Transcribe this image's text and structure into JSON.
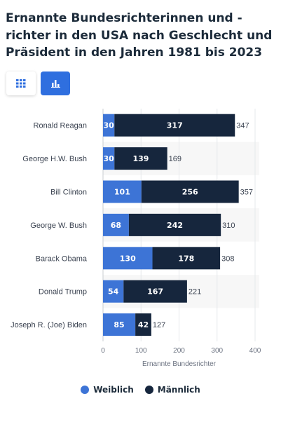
{
  "title": "Ernannte Bundesrichterinnen und -richter in den USA nach Geschlecht und Präsident in den Jahren 1981 bis 2023",
  "icons": {
    "table": "grid-icon",
    "chart": "bar-chart-icon"
  },
  "colors": {
    "female": "#3d74d6",
    "male": "#16263d",
    "accent": "#2f6fdf"
  },
  "chart_data": {
    "type": "bar",
    "orientation": "horizontal",
    "stacked": true,
    "categories": [
      "Ronald Reagan",
      "George H.W. Bush",
      "Bill Clinton",
      "George W. Bush",
      "Barack Obama",
      "Donald Trump",
      "Joseph R. (Joe) Biden"
    ],
    "series": [
      {
        "name": "Weiblich",
        "values": [
          30,
          30,
          101,
          68,
          130,
          54,
          85
        ],
        "color": "#3d74d6"
      },
      {
        "name": "Männlich",
        "values": [
          317,
          139,
          256,
          242,
          178,
          167,
          42
        ],
        "color": "#16263d"
      }
    ],
    "totals": [
      347,
      169,
      357,
      310,
      308,
      221,
      127
    ],
    "xlabel": "Ernannte Bundesrichter",
    "ylabel": "",
    "xlim": [
      0,
      400
    ],
    "xticks": [
      0,
      100,
      200,
      300,
      400
    ],
    "grid": true,
    "legend": "bottom"
  }
}
